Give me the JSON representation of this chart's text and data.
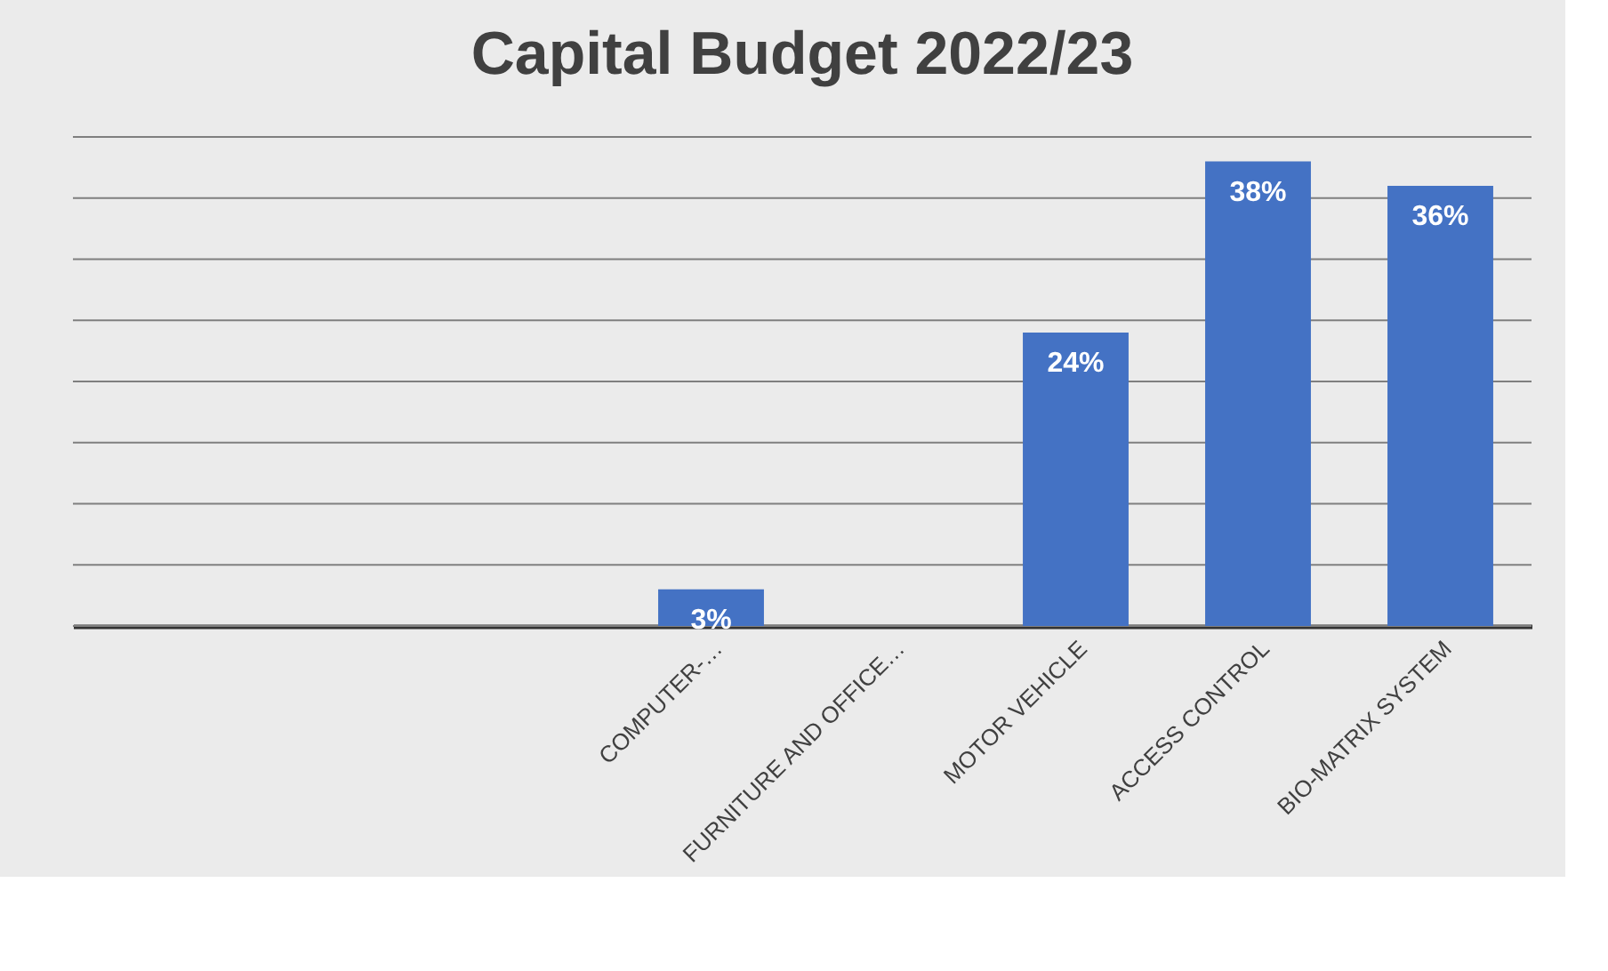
{
  "chart_data": {
    "type": "bar",
    "title": "Capital Budget  2022/23",
    "categories": [
      null,
      null,
      null,
      "COMPUTER-…",
      "FURNITURE AND OFFICE…",
      "MOTOR VEHICLE",
      "ACCESS CONTROL",
      "BIO-MATRIX SYSTEM"
    ],
    "values": [
      null,
      null,
      null,
      3,
      null,
      24,
      38,
      36
    ],
    "value_labels": [
      null,
      null,
      null,
      "3%",
      null,
      "24%",
      "38%",
      "36%"
    ],
    "color": "#4472c4",
    "ylim": [
      0,
      40
    ],
    "yticks": [
      {
        "value": 0,
        "label": null
      },
      {
        "value": 5,
        "label": null
      },
      {
        "value": 10,
        "label": null
      },
      {
        "value": 15,
        "label": null
      },
      {
        "value": 20,
        "label": null
      },
      {
        "value": 25,
        "label": null
      },
      {
        "value": 30,
        "label": null
      },
      {
        "value": 35,
        "label": null
      },
      {
        "value": 40,
        "label": null
      }
    ],
    "grid": "y",
    "tick_labels": "x"
  }
}
